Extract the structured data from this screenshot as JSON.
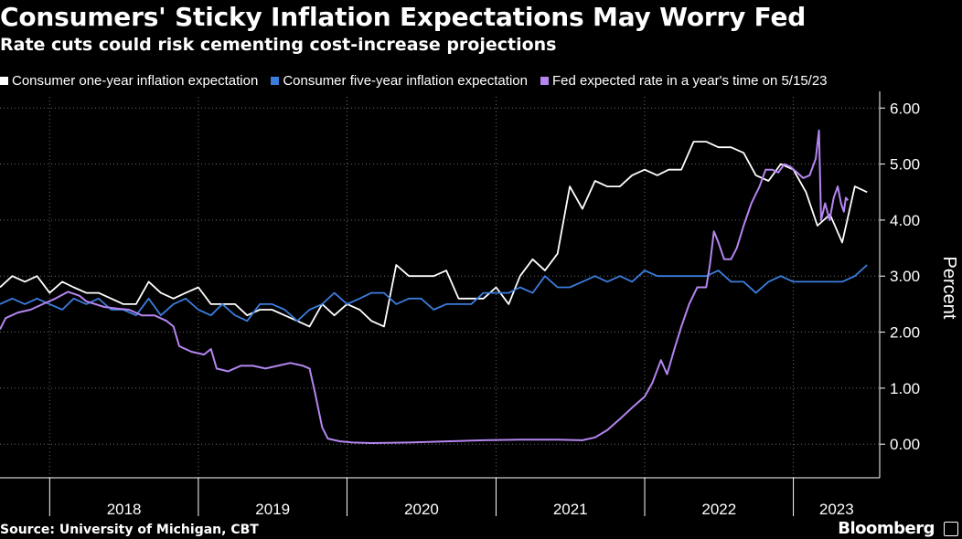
{
  "title": "Consumers' Sticky Inflation Expectations May Worry Fed",
  "subtitle": "Rate cuts could risk cementing cost-increase projections",
  "source": "Source: University of Michigan, CBT",
  "brand": "Bloomberg",
  "brand_icon": "bloomberg-terminal-icon",
  "chart_data": {
    "type": "line",
    "title": "Consumers' Sticky Inflation Expectations May Worry Fed",
    "subtitle": "Rate cuts could risk cementing cost-increase projections",
    "ylabel": "Percent",
    "ylim": [
      -0.6,
      6.2
    ],
    "xlim": [
      "2017-09-01",
      "2023-08-01"
    ],
    "y_ticks": [
      "0.00",
      "1.00",
      "2.00",
      "3.00",
      "4.00",
      "5.00",
      "6.00"
    ],
    "x_ticks": [
      "2018",
      "2019",
      "2020",
      "2021",
      "2022",
      "2023"
    ],
    "grid": true,
    "legend_position": "top-left",
    "series": [
      {
        "name": "Consumer one-year inflation expectation",
        "color": "#ffffff",
        "points": [
          [
            "2017-09-01",
            2.8
          ],
          [
            "2017-10-01",
            3.0
          ],
          [
            "2017-11-01",
            2.9
          ],
          [
            "2017-12-01",
            3.0
          ],
          [
            "2018-01-01",
            2.7
          ],
          [
            "2018-02-01",
            2.9
          ],
          [
            "2018-03-01",
            2.8
          ],
          [
            "2018-04-01",
            2.7
          ],
          [
            "2018-05-01",
            2.7
          ],
          [
            "2018-06-01",
            2.6
          ],
          [
            "2018-07-01",
            2.5
          ],
          [
            "2018-08-01",
            2.5
          ],
          [
            "2018-09-01",
            2.9
          ],
          [
            "2018-10-01",
            2.7
          ],
          [
            "2018-11-01",
            2.6
          ],
          [
            "2018-12-01",
            2.7
          ],
          [
            "2019-01-01",
            2.8
          ],
          [
            "2019-02-01",
            2.5
          ],
          [
            "2019-03-01",
            2.5
          ],
          [
            "2019-04-01",
            2.5
          ],
          [
            "2019-05-01",
            2.3
          ],
          [
            "2019-06-01",
            2.4
          ],
          [
            "2019-07-01",
            2.4
          ],
          [
            "2019-08-01",
            2.3
          ],
          [
            "2019-09-01",
            2.2
          ],
          [
            "2019-10-01",
            2.1
          ],
          [
            "2019-11-01",
            2.5
          ],
          [
            "2019-12-01",
            2.3
          ],
          [
            "2020-01-01",
            2.5
          ],
          [
            "2020-02-01",
            2.4
          ],
          [
            "2020-03-01",
            2.2
          ],
          [
            "2020-04-01",
            2.1
          ],
          [
            "2020-05-01",
            3.2
          ],
          [
            "2020-06-01",
            3.0
          ],
          [
            "2020-07-01",
            3.0
          ],
          [
            "2020-08-01",
            3.0
          ],
          [
            "2020-09-01",
            3.1
          ],
          [
            "2020-10-01",
            2.6
          ],
          [
            "2020-11-01",
            2.6
          ],
          [
            "2020-12-01",
            2.6
          ],
          [
            "2021-01-01",
            2.8
          ],
          [
            "2021-02-01",
            2.5
          ],
          [
            "2021-03-01",
            3.0
          ],
          [
            "2021-04-01",
            3.3
          ],
          [
            "2021-05-01",
            3.1
          ],
          [
            "2021-06-01",
            3.4
          ],
          [
            "2021-07-01",
            4.6
          ],
          [
            "2021-08-01",
            4.2
          ],
          [
            "2021-09-01",
            4.7
          ],
          [
            "2021-10-01",
            4.6
          ],
          [
            "2021-11-01",
            4.6
          ],
          [
            "2021-12-01",
            4.8
          ],
          [
            "2022-01-01",
            4.9
          ],
          [
            "2022-02-01",
            4.8
          ],
          [
            "2022-03-01",
            4.9
          ],
          [
            "2022-04-01",
            4.9
          ],
          [
            "2022-05-01",
            5.4
          ],
          [
            "2022-06-01",
            5.4
          ],
          [
            "2022-07-01",
            5.3
          ],
          [
            "2022-08-01",
            5.3
          ],
          [
            "2022-09-01",
            5.2
          ],
          [
            "2022-10-01",
            4.8
          ],
          [
            "2022-11-01",
            4.7
          ],
          [
            "2022-12-01",
            5.0
          ],
          [
            "2023-01-01",
            4.9
          ],
          [
            "2023-02-01",
            4.5
          ],
          [
            "2023-03-01",
            3.9
          ],
          [
            "2023-04-01",
            4.1
          ],
          [
            "2023-05-01",
            3.6
          ],
          [
            "2023-06-01",
            4.6
          ],
          [
            "2023-07-01",
            4.5
          ]
        ]
      },
      {
        "name": "Consumer five-year inflation expectation",
        "color": "#3b7ddd",
        "points": [
          [
            "2017-09-01",
            2.5
          ],
          [
            "2017-10-01",
            2.6
          ],
          [
            "2017-11-01",
            2.5
          ],
          [
            "2017-12-01",
            2.6
          ],
          [
            "2018-01-01",
            2.5
          ],
          [
            "2018-02-01",
            2.4
          ],
          [
            "2018-03-01",
            2.6
          ],
          [
            "2018-04-01",
            2.5
          ],
          [
            "2018-05-01",
            2.6
          ],
          [
            "2018-06-01",
            2.4
          ],
          [
            "2018-07-01",
            2.4
          ],
          [
            "2018-08-01",
            2.3
          ],
          [
            "2018-09-01",
            2.6
          ],
          [
            "2018-10-01",
            2.3
          ],
          [
            "2018-11-01",
            2.5
          ],
          [
            "2018-12-01",
            2.6
          ],
          [
            "2019-01-01",
            2.4
          ],
          [
            "2019-02-01",
            2.3
          ],
          [
            "2019-03-01",
            2.5
          ],
          [
            "2019-04-01",
            2.3
          ],
          [
            "2019-05-01",
            2.2
          ],
          [
            "2019-06-01",
            2.5
          ],
          [
            "2019-07-01",
            2.5
          ],
          [
            "2019-08-01",
            2.4
          ],
          [
            "2019-09-01",
            2.2
          ],
          [
            "2019-10-01",
            2.4
          ],
          [
            "2019-11-01",
            2.5
          ],
          [
            "2019-12-01",
            2.7
          ],
          [
            "2020-01-01",
            2.5
          ],
          [
            "2020-02-01",
            2.6
          ],
          [
            "2020-03-01",
            2.7
          ],
          [
            "2020-04-01",
            2.7
          ],
          [
            "2020-05-01",
            2.5
          ],
          [
            "2020-06-01",
            2.6
          ],
          [
            "2020-07-01",
            2.6
          ],
          [
            "2020-08-01",
            2.4
          ],
          [
            "2020-09-01",
            2.5
          ],
          [
            "2020-10-01",
            2.5
          ],
          [
            "2020-11-01",
            2.5
          ],
          [
            "2020-12-01",
            2.7
          ],
          [
            "2021-01-01",
            2.7
          ],
          [
            "2021-02-01",
            2.7
          ],
          [
            "2021-03-01",
            2.8
          ],
          [
            "2021-04-01",
            2.7
          ],
          [
            "2021-05-01",
            3.0
          ],
          [
            "2021-06-01",
            2.8
          ],
          [
            "2021-07-01",
            2.8
          ],
          [
            "2021-08-01",
            2.9
          ],
          [
            "2021-09-01",
            3.0
          ],
          [
            "2021-10-01",
            2.9
          ],
          [
            "2021-11-01",
            3.0
          ],
          [
            "2021-12-01",
            2.9
          ],
          [
            "2022-01-01",
            3.1
          ],
          [
            "2022-02-01",
            3.0
          ],
          [
            "2022-03-01",
            3.0
          ],
          [
            "2022-04-01",
            3.0
          ],
          [
            "2022-05-01",
            3.0
          ],
          [
            "2022-06-01",
            3.0
          ],
          [
            "2022-07-01",
            3.1
          ],
          [
            "2022-08-01",
            2.9
          ],
          [
            "2022-09-01",
            2.9
          ],
          [
            "2022-10-01",
            2.7
          ],
          [
            "2022-11-01",
            2.9
          ],
          [
            "2022-12-01",
            3.0
          ],
          [
            "2023-01-01",
            2.9
          ],
          [
            "2023-02-01",
            2.9
          ],
          [
            "2023-03-01",
            2.9
          ],
          [
            "2023-04-01",
            2.9
          ],
          [
            "2023-05-01",
            2.9
          ],
          [
            "2023-06-01",
            3.0
          ],
          [
            "2023-07-01",
            3.2
          ]
        ]
      },
      {
        "name": "Fed expected rate in a year's time on 5/15/23",
        "color": "#b486f0",
        "points": [
          [
            "2017-09-01",
            2.05
          ],
          [
            "2017-09-15",
            2.25
          ],
          [
            "2017-10-15",
            2.35
          ],
          [
            "2017-11-15",
            2.4
          ],
          [
            "2017-12-15",
            2.5
          ],
          [
            "2018-01-15",
            2.6
          ],
          [
            "2018-02-15",
            2.72
          ],
          [
            "2018-03-15",
            2.65
          ],
          [
            "2018-04-01",
            2.55
          ],
          [
            "2018-05-15",
            2.45
          ],
          [
            "2018-06-15",
            2.42
          ],
          [
            "2018-07-15",
            2.4
          ],
          [
            "2018-08-15",
            2.3
          ],
          [
            "2018-09-15",
            2.3
          ],
          [
            "2018-10-15",
            2.2
          ],
          [
            "2018-11-01",
            2.1
          ],
          [
            "2018-11-15",
            1.75
          ],
          [
            "2018-12-15",
            1.65
          ],
          [
            "2019-01-15",
            1.6
          ],
          [
            "2019-02-01",
            1.7
          ],
          [
            "2019-02-15",
            1.35
          ],
          [
            "2019-03-15",
            1.3
          ],
          [
            "2019-04-15",
            1.4
          ],
          [
            "2019-05-15",
            1.4
          ],
          [
            "2019-06-15",
            1.35
          ],
          [
            "2019-07-15",
            1.4
          ],
          [
            "2019-08-15",
            1.45
          ],
          [
            "2019-09-15",
            1.4
          ],
          [
            "2019-10-01",
            1.35
          ],
          [
            "2019-10-15",
            0.9
          ],
          [
            "2019-11-01",
            0.3
          ],
          [
            "2019-11-15",
            0.1
          ],
          [
            "2019-12-15",
            0.05
          ],
          [
            "2020-01-15",
            0.03
          ],
          [
            "2020-03-01",
            0.02
          ],
          [
            "2020-06-01",
            0.03
          ],
          [
            "2020-09-01",
            0.05
          ],
          [
            "2020-12-01",
            0.07
          ],
          [
            "2021-03-01",
            0.08
          ],
          [
            "2021-06-01",
            0.08
          ],
          [
            "2021-08-01",
            0.07
          ],
          [
            "2021-09-01",
            0.12
          ],
          [
            "2021-10-01",
            0.25
          ],
          [
            "2021-11-01",
            0.45
          ],
          [
            "2021-12-01",
            0.65
          ],
          [
            "2022-01-01",
            0.85
          ],
          [
            "2022-01-20",
            1.1
          ],
          [
            "2022-02-10",
            1.5
          ],
          [
            "2022-02-25",
            1.25
          ],
          [
            "2022-03-15",
            1.7
          ],
          [
            "2022-04-01",
            2.1
          ],
          [
            "2022-04-20",
            2.5
          ],
          [
            "2022-05-10",
            2.8
          ],
          [
            "2022-06-01",
            2.8
          ],
          [
            "2022-06-10",
            3.2
          ],
          [
            "2022-06-20",
            3.8
          ],
          [
            "2022-07-01",
            3.6
          ],
          [
            "2022-07-15",
            3.3
          ],
          [
            "2022-08-01",
            3.3
          ],
          [
            "2022-08-15",
            3.5
          ],
          [
            "2022-09-01",
            3.9
          ],
          [
            "2022-09-20",
            4.3
          ],
          [
            "2022-10-10",
            4.6
          ],
          [
            "2022-10-25",
            4.9
          ],
          [
            "2022-11-10",
            4.9
          ],
          [
            "2022-11-25",
            4.85
          ],
          [
            "2022-12-10",
            5.0
          ],
          [
            "2022-12-25",
            4.95
          ],
          [
            "2023-01-10",
            4.85
          ],
          [
            "2023-01-25",
            4.75
          ],
          [
            "2023-02-10",
            4.8
          ],
          [
            "2023-02-25",
            5.1
          ],
          [
            "2023-03-05",
            5.6
          ],
          [
            "2023-03-10",
            4.0
          ],
          [
            "2023-03-20",
            4.3
          ],
          [
            "2023-03-31",
            4.0
          ],
          [
            "2023-04-10",
            4.4
          ],
          [
            "2023-04-20",
            4.6
          ],
          [
            "2023-04-28",
            4.3
          ],
          [
            "2023-05-05",
            4.15
          ],
          [
            "2023-05-10",
            4.4
          ],
          [
            "2023-05-15",
            4.35
          ]
        ]
      }
    ]
  }
}
